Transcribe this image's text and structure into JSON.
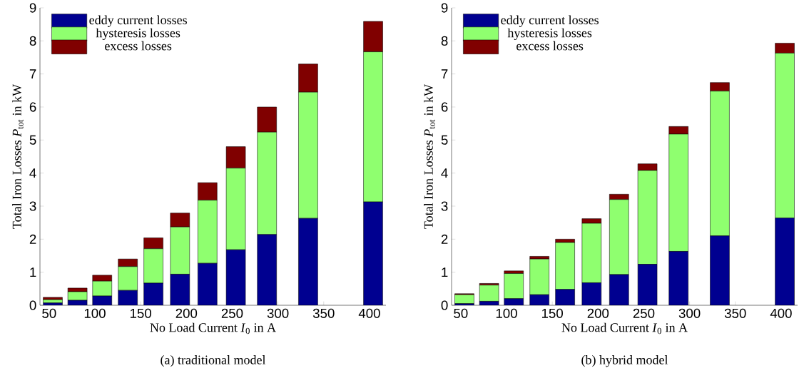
{
  "chart_data": [
    {
      "type": "bar",
      "stacked": true,
      "title": "(a) traditional model",
      "xlabel": "No Load Current *I*$_{0}$ in A",
      "ylabel": "Total Iron Losses *P*$_{tot}$ in kW",
      "legend": "top left",
      "x": [
        54,
        81,
        108,
        136,
        164,
        193,
        223,
        254,
        288,
        333,
        404
      ],
      "xlim": [
        40,
        418
      ],
      "xticks": [
        50,
        100,
        150,
        200,
        250,
        300,
        350,
        400
      ],
      "ylim": [
        0,
        9
      ],
      "yticks": [
        0,
        1,
        2,
        3,
        4,
        5,
        6,
        7,
        8,
        9
      ],
      "series": [
        {
          "name": "eddy current losses",
          "color": "#000090",
          "values": [
            0.07,
            0.15,
            0.28,
            0.45,
            0.67,
            0.94,
            1.27,
            1.68,
            2.14,
            2.63,
            3.13
          ]
        },
        {
          "name": "hysteresis losses",
          "color": "#8fff6f",
          "values": [
            0.1,
            0.26,
            0.45,
            0.72,
            1.04,
            1.43,
            1.91,
            2.47,
            3.1,
            3.82,
            4.54
          ]
        },
        {
          "name": "excess losses",
          "color": "#800000",
          "values": [
            0.07,
            0.11,
            0.18,
            0.23,
            0.33,
            0.42,
            0.53,
            0.65,
            0.76,
            0.85,
            0.92
          ]
        }
      ]
    },
    {
      "type": "bar",
      "stacked": true,
      "title": "(b) hybrid model",
      "xlabel": "No Load Current *I*$_{0}$ in A",
      "ylabel": "Total Iron Losses *P*$_{tot}$ in kW",
      "legend": "top left",
      "x": [
        54,
        81,
        108,
        136,
        164,
        193,
        223,
        254,
        288,
        333,
        404
      ],
      "xlim": [
        40,
        418
      ],
      "xticks": [
        50,
        100,
        150,
        200,
        250,
        300,
        350,
        400
      ],
      "ylim": [
        0,
        9
      ],
      "yticks": [
        0,
        1,
        2,
        3,
        4,
        5,
        6,
        7,
        8,
        9
      ],
      "series": [
        {
          "name": "eddy current losses",
          "color": "#000090",
          "values": [
            0.05,
            0.12,
            0.2,
            0.32,
            0.48,
            0.68,
            0.93,
            1.24,
            1.63,
            2.1,
            2.64
          ]
        },
        {
          "name": "hysteresis losses",
          "color": "#8fff6f",
          "values": [
            0.27,
            0.49,
            0.76,
            1.08,
            1.42,
            1.8,
            2.27,
            2.84,
            3.55,
            4.38,
            4.99
          ]
        },
        {
          "name": "excess losses",
          "color": "#800000",
          "values": [
            0.03,
            0.05,
            0.08,
            0.08,
            0.1,
            0.14,
            0.16,
            0.2,
            0.23,
            0.26,
            0.3
          ]
        }
      ]
    }
  ]
}
